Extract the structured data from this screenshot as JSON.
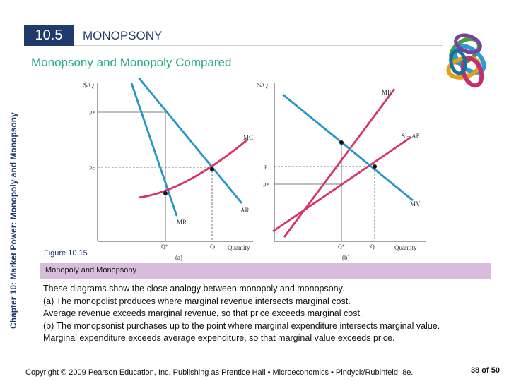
{
  "section": {
    "number": "10.5",
    "title": "MONOPSONY"
  },
  "subtitle": "Monopsony and Monopoly Compared",
  "sidebar_text": "Chapter 10: Market Power: Monopoly and Monopsony",
  "chart_data": [
    {
      "type": "line",
      "panel": "(a)",
      "ylabel": "$/Q",
      "xlabel": "Quantity",
      "x_ticks": [
        "Q*",
        "Qc"
      ],
      "y_ticks": [
        "P*",
        "Pc"
      ],
      "series": [
        {
          "name": "AR",
          "color": "#2596c8"
        },
        {
          "name": "MR",
          "color": "#2596c8"
        },
        {
          "name": "MC",
          "color": "#d6336c"
        }
      ]
    },
    {
      "type": "line",
      "panel": "(b)",
      "ylabel": "$/Q",
      "xlabel": "Quantity",
      "x_ticks": [
        "Q*",
        "Qc"
      ],
      "y_ticks": [
        "P",
        "P*"
      ],
      "series": [
        {
          "name": "ME",
          "color": "#d6336c"
        },
        {
          "name": "S = AE",
          "color": "#d6336c"
        },
        {
          "name": "MV",
          "color": "#2596c8"
        }
      ]
    }
  ],
  "figure": {
    "label": "Figure 10.15",
    "title": "Monopoly and Monopsony"
  },
  "caption": [
    "These diagrams show the close analogy between monopoly and monopsony.",
    "(a) The monopolist produces where marginal revenue intersects marginal cost.",
    "Average revenue exceeds marginal revenue, so that price exceeds marginal cost.",
    "(b) The monopsonist purchases up to the point where marginal expenditure intersects marginal value.",
    "Marginal expenditure exceeds average expenditure, so that marginal value exceeds price."
  ],
  "footer": "Copyright © 2009 Pearson Education, Inc. Publishing as Prentice Hall • Microeconomics • Pindyck/Rubinfeld, 8e.",
  "page": "38 of 50",
  "colors": {
    "navy": "#1f3a6b",
    "teal": "#26a88f",
    "band": "#d7bcdc",
    "blue": "#2596c8",
    "pink": "#d6336c"
  }
}
